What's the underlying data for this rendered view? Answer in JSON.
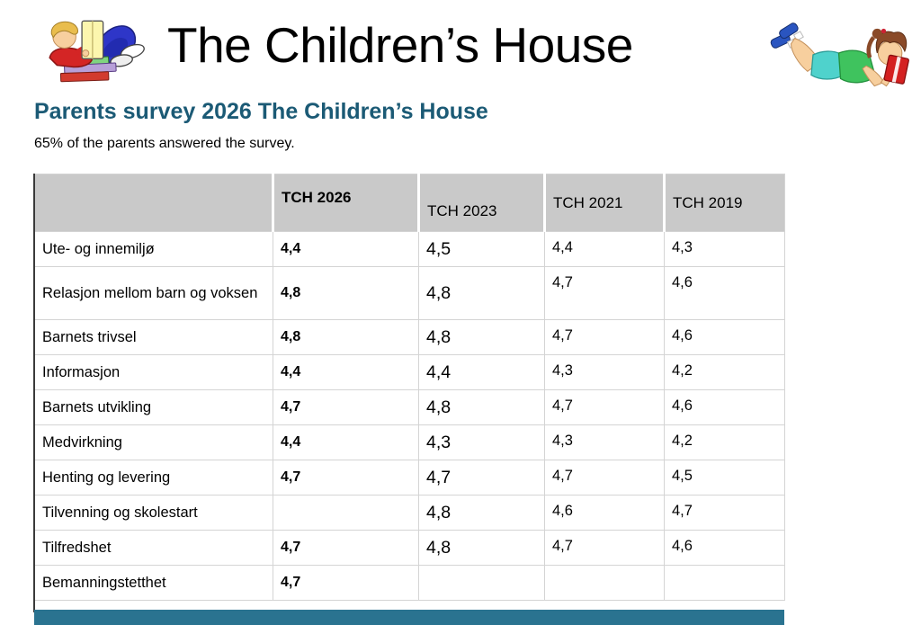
{
  "header": {
    "title": "The Children’s House",
    "left_clipart": "boy-reading-clipart",
    "right_clipart": "girl-reading-clipart"
  },
  "section": {
    "heading": "Parents survey 2026 The Children’s House",
    "subtitle": "65% of the parents answered the survey."
  },
  "colors": {
    "heading_text": "#1b5a75",
    "table_header_bg": "#c9c9c9",
    "footer_bar": "#2a7390"
  },
  "table": {
    "columns": [
      "",
      "TCH 2026",
      "TCH 2023",
      "TCH 2021",
      "TCH 2019"
    ],
    "rows": [
      {
        "label": "Ute- og innemiljø",
        "values": [
          "4,4",
          "4,5",
          "4,4",
          "4,3"
        ]
      },
      {
        "label": "Relasjon mellom barn og voksen",
        "values": [
          "4,8",
          "4,8",
          "4,7",
          "4,6"
        ]
      },
      {
        "label": "Barnets trivsel",
        "values": [
          "4,8",
          "4,8",
          "4,7",
          "4,6"
        ]
      },
      {
        "label": "Informasjon",
        "values": [
          "4,4",
          "4,4",
          "4,3",
          "4,2"
        ]
      },
      {
        "label": "Barnets utvikling",
        "values": [
          "4,7",
          "4,8",
          "4,7",
          "4,6"
        ]
      },
      {
        "label": "Medvirkning",
        "values": [
          "4,4",
          "4,3",
          "4,3",
          "4,2"
        ]
      },
      {
        "label": "Henting og levering",
        "values": [
          "4,7",
          "4,7",
          "4,7",
          "4,5"
        ]
      },
      {
        "label": "Tilvenning og skolestart",
        "values": [
          "",
          "4,8",
          "4,6",
          "4,7"
        ]
      },
      {
        "label": "Tilfredshet",
        "values": [
          "4,7",
          "4,8",
          "4,7",
          "4,6"
        ]
      },
      {
        "label": "Bemanningstetthet",
        "values": [
          "4,7",
          "",
          "",
          ""
        ]
      }
    ]
  }
}
